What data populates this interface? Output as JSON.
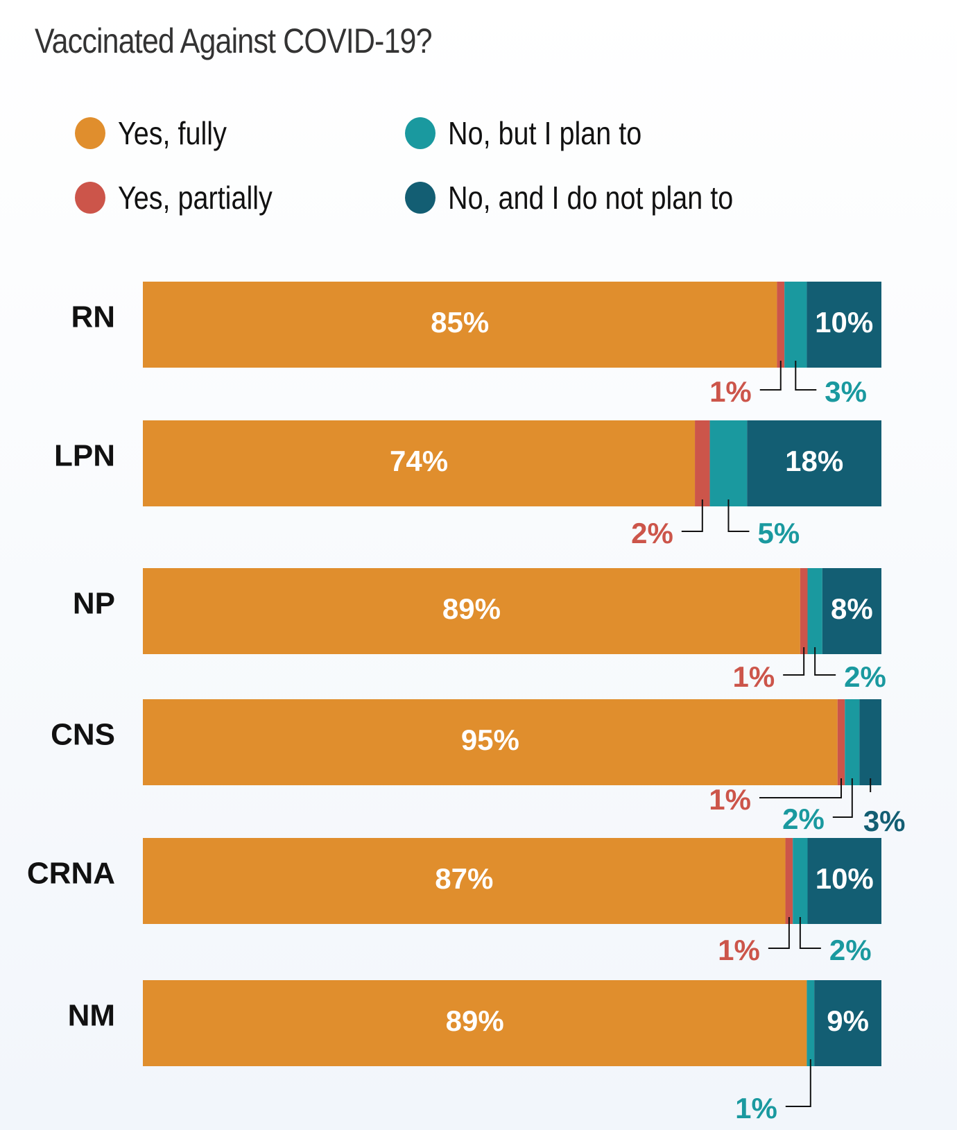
{
  "chart_data": {
    "type": "bar",
    "orientation": "horizontal-stacked",
    "title": "Vaccinated Against COVID-19?",
    "categories": [
      "RN",
      "LPN",
      "NP",
      "CNS",
      "CRNA",
      "NM"
    ],
    "series": [
      {
        "name": "Yes, fully",
        "color": "#e08e2d",
        "values": [
          85,
          74,
          89,
          95,
          87,
          89
        ]
      },
      {
        "name": "Yes, partially",
        "color": "#cc554a",
        "values": [
          1,
          2,
          1,
          1,
          1,
          0
        ]
      },
      {
        "name": "No, but I plan to",
        "color": "#1a999f",
        "values": [
          3,
          5,
          2,
          2,
          2,
          1
        ]
      },
      {
        "name": "No, and I do not plan to",
        "color": "#135e73",
        "values": [
          10,
          18,
          8,
          3,
          10,
          9
        ]
      }
    ],
    "value_format": "%",
    "legend": "top",
    "grid": false
  }
}
